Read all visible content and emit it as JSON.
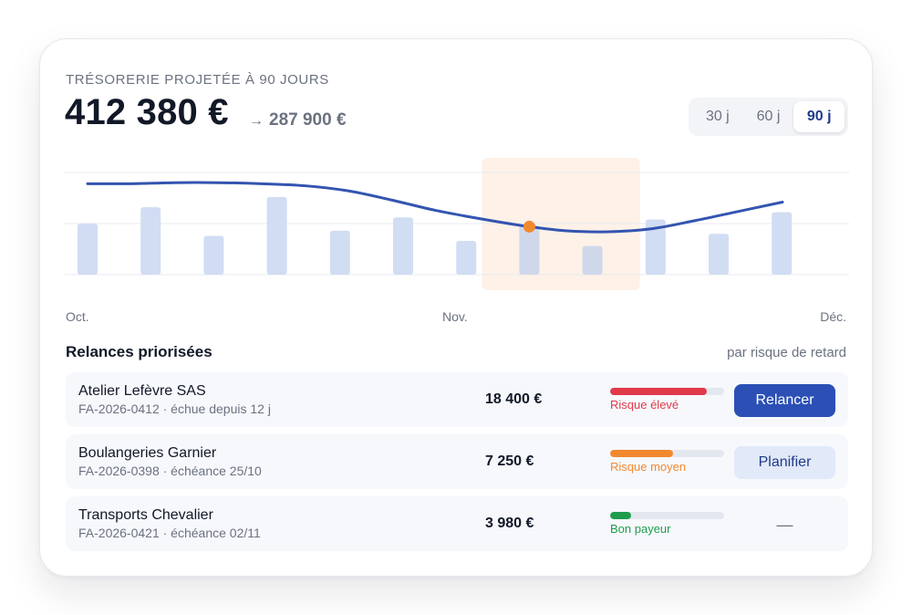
{
  "header": {
    "eyebrow": "TRÉSORERIE PROJETÉE À 90 JOURS",
    "amount": "412 380 €",
    "arrow": "→",
    "projected": "287 900 €"
  },
  "periods": [
    {
      "label": "30 j",
      "active": false
    },
    {
      "label": "60 j",
      "active": false
    },
    {
      "label": "90 j",
      "active": true
    }
  ],
  "chart_data": {
    "type": "bar",
    "x_labels": [
      "Oct.",
      "Nov.",
      "Déc."
    ],
    "bars": [
      0.5,
      0.66,
      0.38,
      0.76,
      0.43,
      0.56,
      0.33,
      0.48,
      0.28,
      0.54,
      0.4,
      0.61
    ],
    "line": [
      0.89,
      0.89,
      0.9,
      0.9,
      0.89,
      0.87,
      0.82,
      0.73,
      0.63,
      0.55,
      0.48,
      0.43,
      0.42,
      0.45,
      0.53,
      0.62,
      0.71
    ],
    "highlight_bars": [
      7,
      8
    ],
    "marker_bar": 7,
    "colors": {
      "bar": "#d1ddf3",
      "bar_highlight": "#cfd8ea",
      "line": "#3354b0",
      "marker": "#f2892e",
      "band": "#fdf1e8"
    }
  },
  "section": {
    "title": "Relances priorisées",
    "subtitle": "par risque de retard"
  },
  "invoices": [
    {
      "client": "Atelier Lefèvre SAS",
      "ref": "FA-2026-0412 · échue depuis 12 j",
      "amount": "18 400 €",
      "risk_level": 0.85,
      "risk_label": "Risque élevé",
      "risk_color": "#e0394a",
      "action": "Relancer",
      "action_style": "primary"
    },
    {
      "client": "Boulangeries Garnier",
      "ref": "FA-2026-0398 · échéance 25/10",
      "amount": "7 250 €",
      "risk_level": 0.55,
      "risk_label": "Risque moyen",
      "risk_color": "#f2892e",
      "action": "Planifier",
      "action_style": "secondary"
    },
    {
      "client": "Transports Chevalier",
      "ref": "FA-2026-0421 · échéance 02/11",
      "amount": "3 980 €",
      "risk_level": 0.18,
      "risk_label": "Bon payeur",
      "risk_color": "#1f9d4d",
      "action": "—",
      "action_style": "none"
    }
  ]
}
